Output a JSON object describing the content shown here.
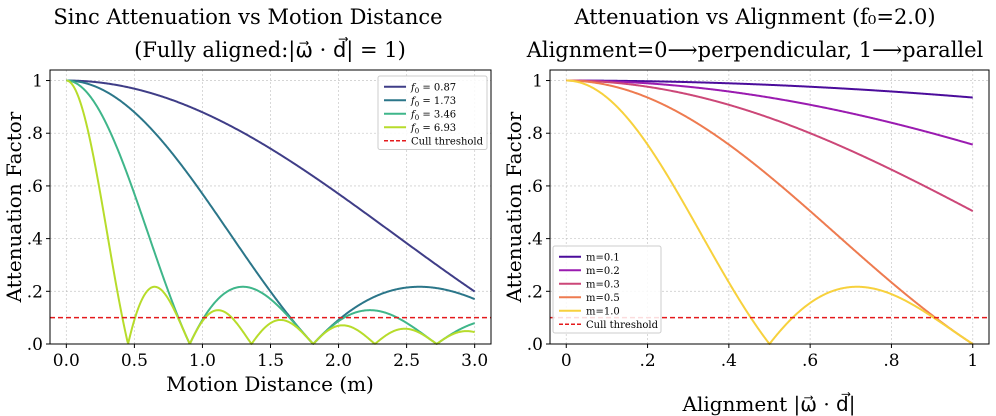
{
  "chart_data": [
    {
      "type": "line",
      "title_line1": "Sinc Attenuation vs Motion Distance",
      "title_line2": "(Fully aligned:|ω⃗ · d⃗| = 1)",
      "xlabel": "Motion Distance (m)",
      "ylabel": "Attenuation Factor",
      "xlim": [
        -0.12,
        3.12
      ],
      "ylim": [
        0.0,
        1.04
      ],
      "grid": true,
      "legend_position": "top-right",
      "xticks": [
        0.0,
        0.5,
        1.0,
        1.5,
        2.0,
        2.5,
        3.0
      ],
      "xtick_labels": [
        "0.0",
        "0.5",
        "1.0",
        "1.5",
        "2.0",
        "2.5",
        "3.0"
      ],
      "yticks": [
        0.0,
        0.2,
        0.4,
        0.6,
        0.8,
        1.0
      ],
      "ytick_labels": [
        ".0",
        ".2",
        ".4",
        ".6",
        ".8",
        "1"
      ],
      "x_range": [
        0.0,
        3.0
      ],
      "series": [
        {
          "name": "f₀ = 0.87",
          "label_base": "f",
          "label_sub": "0",
          "label_value": " = 0.87",
          "f0": 0.866,
          "color": "#3f3d87"
        },
        {
          "name": "f₀ = 1.73",
          "label_base": "f",
          "label_sub": "0",
          "label_value": " = 1.73",
          "f0": 1.732,
          "color": "#2b7689"
        },
        {
          "name": "f₀ = 3.46",
          "label_base": "f",
          "label_sub": "0",
          "label_value": " = 3.46",
          "f0": 3.464,
          "color": "#3fb68a"
        },
        {
          "name": "f₀ = 6.93",
          "label_base": "f",
          "label_sub": "0",
          "label_value": " = 6.93",
          "f0": 6.928,
          "color": "#b7dc2b"
        }
      ],
      "threshold": {
        "name": "Cull threshold",
        "value": 0.1,
        "color": "#e41a1c"
      }
    },
    {
      "type": "line",
      "title_line1": "Attenuation vs Alignment (f₀=2.0)",
      "title_line2": "Alignment=0⟶perpendicular, 1⟶parallel",
      "xlabel": "Alignment |ω⃗ · d⃗|",
      "ylabel": "Attenuation Factor",
      "xlim": [
        -0.04,
        1.04
      ],
      "ylim": [
        0.0,
        1.04
      ],
      "grid": true,
      "legend_position": "bottom-left",
      "xticks": [
        0.0,
        0.2,
        0.4,
        0.6,
        0.8,
        1.0
      ],
      "xtick_labels": [
        "0",
        ".2",
        ".4",
        ".6",
        ".8",
        "1"
      ],
      "yticks": [
        0.0,
        0.2,
        0.4,
        0.6,
        0.8,
        1.0
      ],
      "ytick_labels": [
        ".0",
        ".2",
        ".4",
        ".6",
        ".8",
        "1"
      ],
      "x_range": [
        0.0,
        1.0
      ],
      "f0": 2.0,
      "series": [
        {
          "name": "m=0.1",
          "m": 0.1,
          "color": "#4b0c9b"
        },
        {
          "name": "m=0.2",
          "m": 0.2,
          "color": "#9a1bb0"
        },
        {
          "name": "m=0.3",
          "m": 0.3,
          "color": "#cc4778"
        },
        {
          "name": "m=0.5",
          "m": 0.5,
          "color": "#ee7b50"
        },
        {
          "name": "m=1.0",
          "m": 1.0,
          "color": "#f7d13d"
        }
      ],
      "threshold": {
        "name": "Cull threshold",
        "value": 0.1,
        "color": "#e41a1c"
      }
    }
  ]
}
